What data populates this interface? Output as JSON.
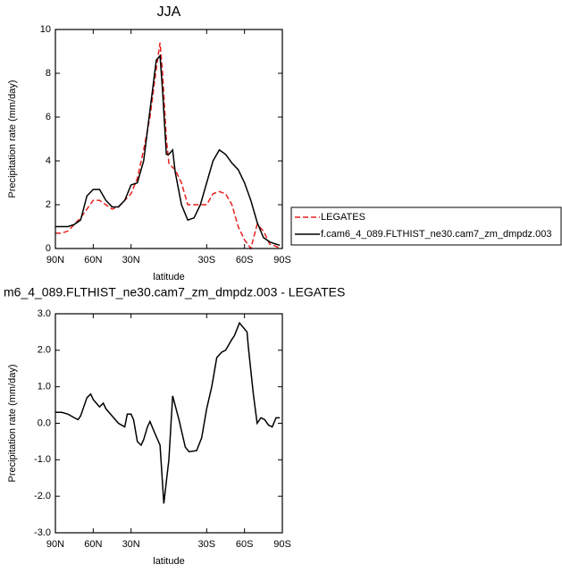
{
  "chart_data": [
    {
      "type": "line",
      "title": "JJA",
      "xlabel": "latitude",
      "ylabel": "Precipitation rate (mm/day)",
      "x": [
        90,
        85,
        80,
        75,
        70,
        65,
        60,
        55,
        50,
        45,
        40,
        35,
        30,
        25,
        20,
        15,
        10,
        7,
        5,
        2,
        0,
        -3,
        -5,
        -10,
        -15,
        -20,
        -25,
        -30,
        -35,
        -40,
        -45,
        -50,
        -55,
        -60,
        -65,
        -70,
        -75,
        -80,
        -85,
        -88
      ],
      "series": [
        {
          "name": "LEGATES",
          "color": "#e8201c",
          "dashed": true,
          "values": [
            0.7,
            0.7,
            0.8,
            1.1,
            1.4,
            1.8,
            2.2,
            2.2,
            2.0,
            1.8,
            1.9,
            2.2,
            2.5,
            3.2,
            4.5,
            6.0,
            8.2,
            9.4,
            8.0,
            5.0,
            3.9,
            3.7,
            3.6,
            3.0,
            2.0,
            2.0,
            2.0,
            2.0,
            2.5,
            2.6,
            2.5,
            2.0,
            1.0,
            0.4,
            0.0,
            1.1,
            0.8,
            0.2,
            0.1,
            0.0
          ]
        },
        {
          "name": "f.cam6_4_089.FLTHIST_ne30.cam7_zm_dmpdz.003",
          "color": "#000000",
          "dashed": false,
          "values": [
            1.0,
            1.0,
            1.0,
            1.1,
            1.3,
            2.4,
            2.7,
            2.7,
            2.2,
            1.9,
            1.9,
            2.2,
            2.9,
            3.0,
            4.0,
            6.3,
            8.6,
            8.8,
            7.2,
            4.3,
            4.3,
            4.5,
            3.5,
            2.0,
            1.3,
            1.4,
            2.0,
            3.0,
            4.0,
            4.5,
            4.3,
            3.9,
            3.6,
            3.0,
            2.2,
            1.2,
            0.5,
            0.3,
            0.2,
            0.15
          ]
        }
      ],
      "xlim": [
        90,
        -90
      ],
      "xticks": [
        {
          "value": 90,
          "label": "90N"
        },
        {
          "value": 60,
          "label": "60N"
        },
        {
          "value": 30,
          "label": "30N"
        },
        {
          "value": -30,
          "label": "30S"
        },
        {
          "value": -60,
          "label": "60S"
        },
        {
          "value": -90,
          "label": "90S"
        }
      ],
      "ylim": [
        0,
        10
      ],
      "yticks": [
        0,
        2,
        4,
        6,
        8,
        10
      ],
      "legend": "right"
    },
    {
      "type": "line",
      "title": "m6_4_089.FLTHIST_ne30.cam7_zm_dmpdz.003 - LEGATES",
      "xlabel": "latitude",
      "ylabel": "Precipitation rate (mm/day)",
      "x": [
        90,
        85,
        80,
        75,
        72,
        70,
        65,
        62,
        60,
        55,
        52,
        50,
        45,
        40,
        35,
        33,
        30,
        28,
        25,
        22,
        20,
        17,
        15,
        12,
        7,
        4,
        0,
        -3,
        -8,
        -13,
        -16,
        -22,
        -26,
        -30,
        -34,
        -38,
        -42,
        -45,
        -50,
        -52,
        -56,
        -62,
        -63,
        -67,
        -70,
        -73,
        -76,
        -79,
        -82,
        -85,
        -88
      ],
      "series": [
        {
          "color": "#000000",
          "dashed": false,
          "values": [
            0.3,
            0.3,
            0.25,
            0.15,
            0.1,
            0.2,
            0.7,
            0.8,
            0.65,
            0.45,
            0.55,
            0.4,
            0.2,
            0.0,
            -0.1,
            0.25,
            0.25,
            0.1,
            -0.5,
            -0.6,
            -0.45,
            -0.1,
            0.05,
            -0.2,
            -0.6,
            -2.2,
            -1.0,
            0.75,
            0.1,
            -0.65,
            -0.78,
            -0.75,
            -0.4,
            0.4,
            1.0,
            1.8,
            1.95,
            2.0,
            2.3,
            2.4,
            2.75,
            2.5,
            2.1,
            0.8,
            0.0,
            0.15,
            0.1,
            -0.05,
            -0.1,
            0.15,
            0.15
          ]
        }
      ],
      "xlim": [
        90,
        -90
      ],
      "xticks": [
        {
          "value": 90,
          "label": "90N"
        },
        {
          "value": 60,
          "label": "60N"
        },
        {
          "value": 30,
          "label": "30N"
        },
        {
          "value": -30,
          "label": "30S"
        },
        {
          "value": -60,
          "label": "60S"
        },
        {
          "value": -90,
          "label": "90S"
        }
      ],
      "ylim": [
        -3,
        3
      ],
      "yticks": [
        {
          "value": -3,
          "label": "-3.0"
        },
        {
          "value": -2,
          "label": "-2.0"
        },
        {
          "value": -1,
          "label": "-1.0"
        },
        {
          "value": 0,
          "label": "0.0"
        },
        {
          "value": 1,
          "label": "1.0"
        },
        {
          "value": 2,
          "label": "2.0"
        },
        {
          "value": 3,
          "label": "3.0"
        }
      ]
    }
  ]
}
